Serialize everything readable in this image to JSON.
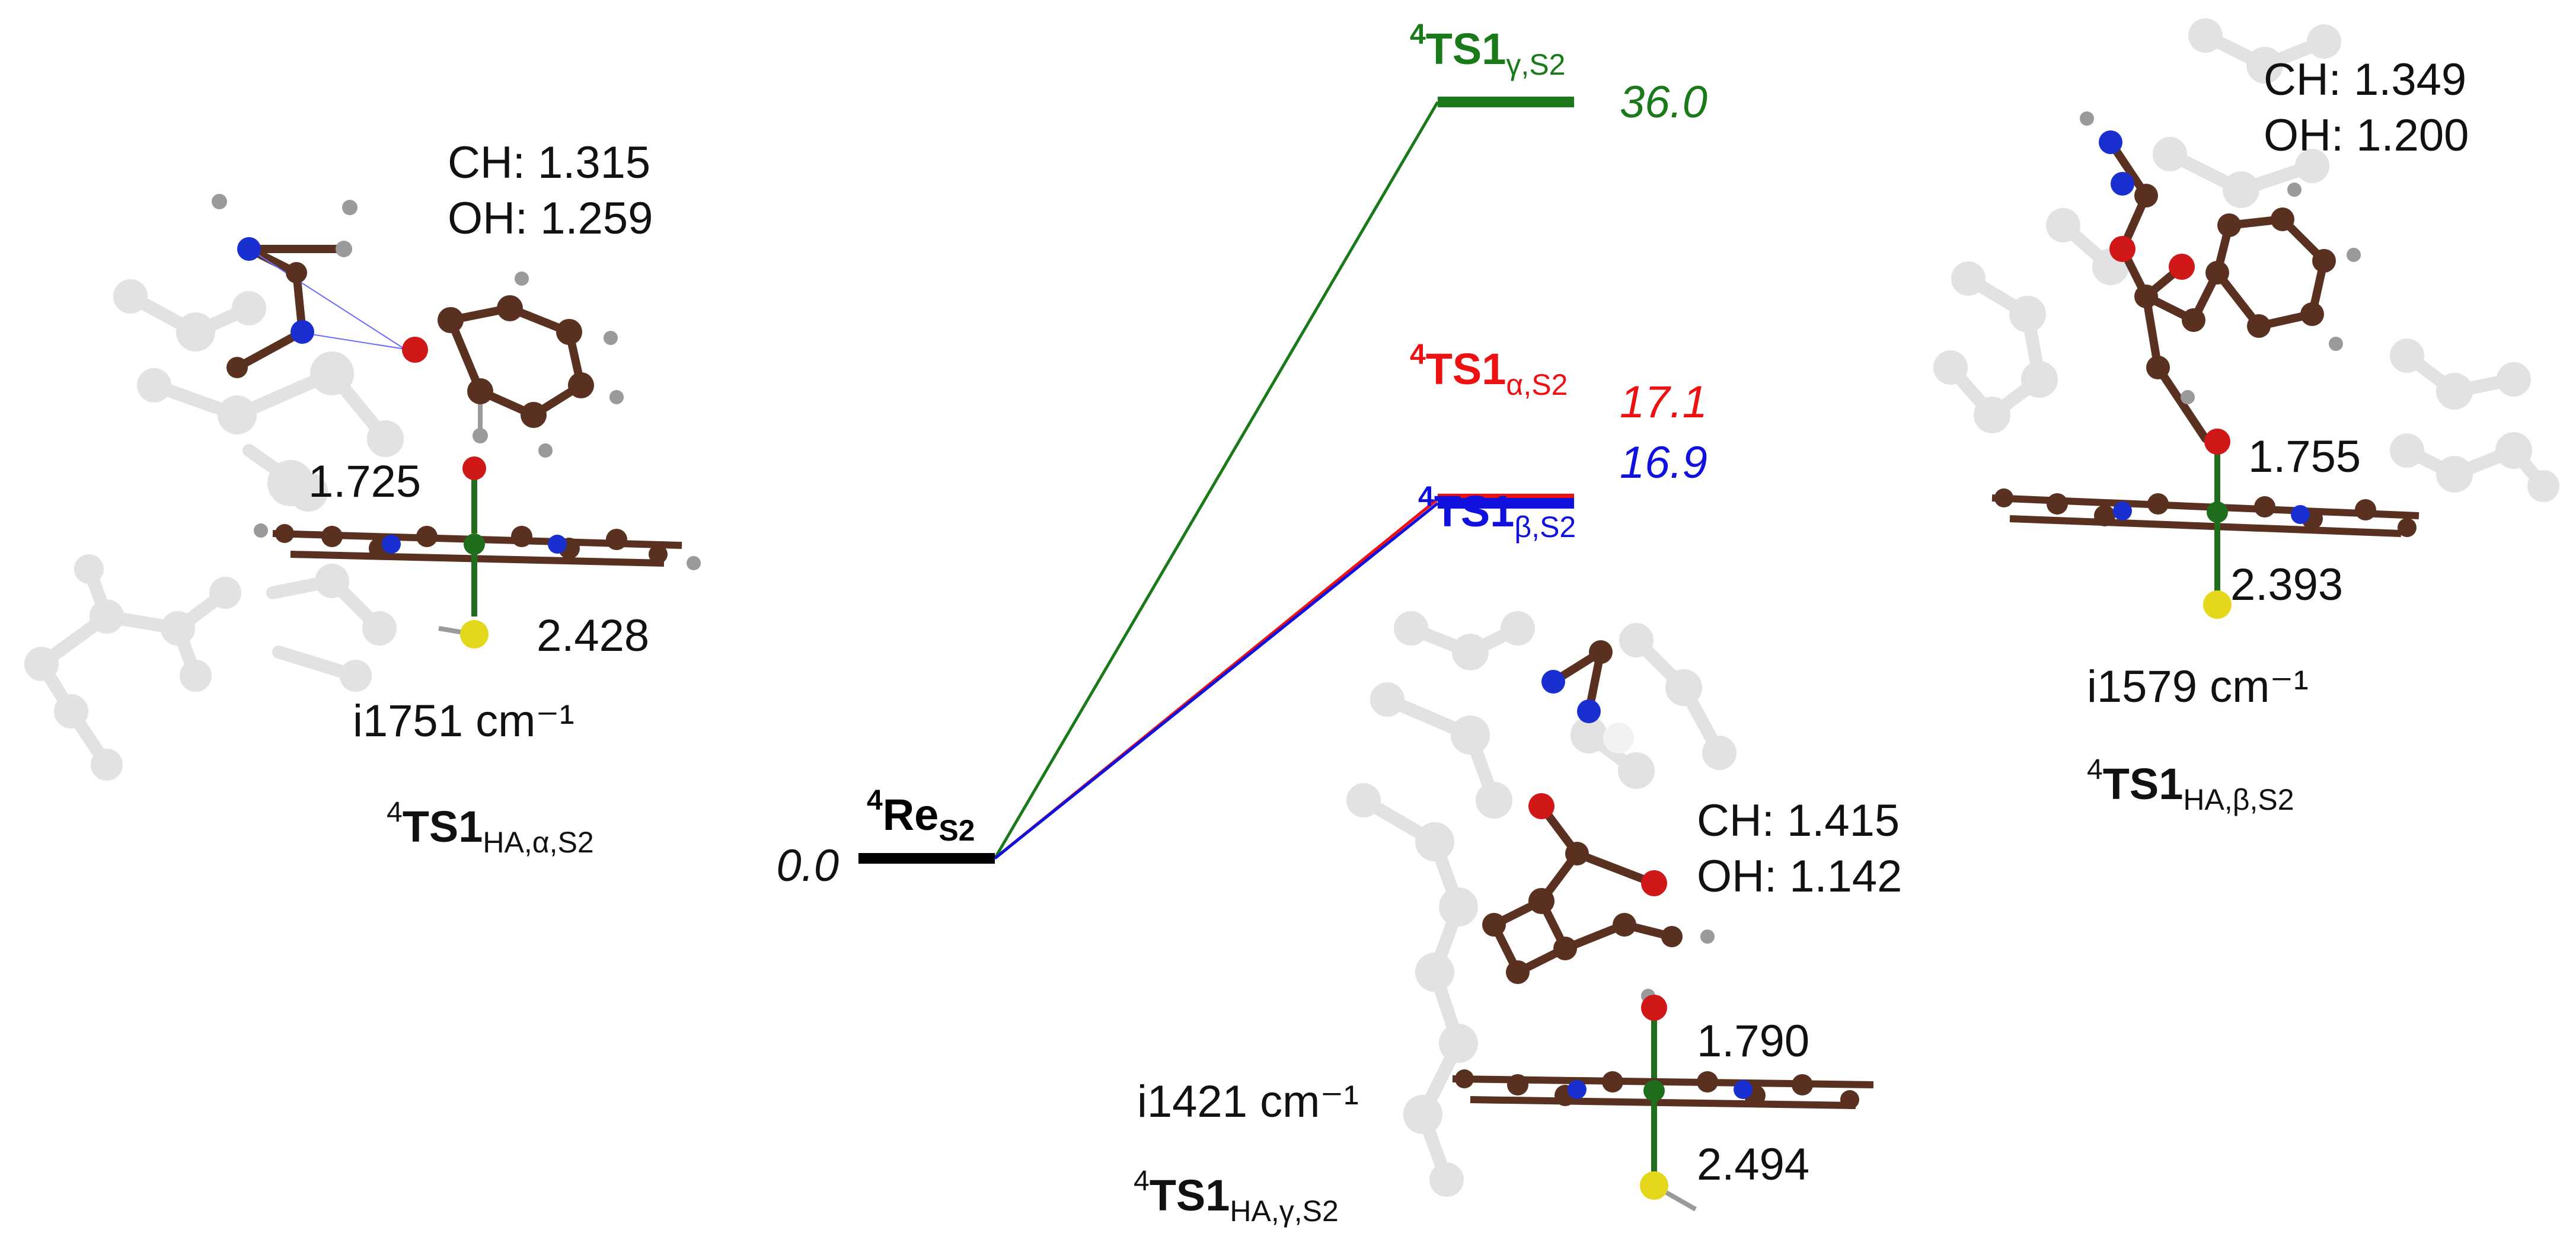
{
  "colors": {
    "reactant": "#000000",
    "gamma": "#1a7a1a",
    "alpha": "#ee1111",
    "beta": "#1111dd",
    "carbon": "#5a3020",
    "hydrogen": "#9a9a9a",
    "nitrogen": "#1a2fd0",
    "oxygen": "#d01818",
    "sulfur": "#e5d81c",
    "metal": "#1e6e1e",
    "faded": "#e2e2e2"
  },
  "chart_data": {
    "type": "energy-level-diagram",
    "units": "",
    "levels": [
      {
        "id": "reactant",
        "sup": "4",
        "main": "Re",
        "sub": "S2",
        "energy": 0.0,
        "energy_label": "0.0",
        "color_key": "reactant"
      },
      {
        "id": "ts_gamma",
        "sup": "4",
        "main": "TS1",
        "sub": "γ,S2",
        "energy": 36.0,
        "energy_label": "36.0",
        "color_key": "gamma"
      },
      {
        "id": "ts_alpha",
        "sup": "4",
        "main": "TS1",
        "sub": "α,S2",
        "energy": 17.1,
        "energy_label": "17.1",
        "color_key": "alpha"
      },
      {
        "id": "ts_beta",
        "sup": "4",
        "main": "TS1",
        "sub": "β,S2",
        "energy": 16.9,
        "energy_label": "16.9",
        "color_key": "beta"
      }
    ],
    "connections": [
      {
        "from": "reactant",
        "to": "ts_gamma"
      },
      {
        "from": "reactant",
        "to": "ts_alpha"
      },
      {
        "from": "reactant",
        "to": "ts_beta"
      }
    ]
  },
  "structures": {
    "alpha": {
      "ch": "CH: 1.315",
      "oh": "OH: 1.259",
      "fe_o": "1.725",
      "fe_s": "2.428",
      "freq": "i1751 cm⁻¹",
      "name": {
        "sup": "4",
        "main": "TS1",
        "sub": "HA,α,S2"
      }
    },
    "gamma": {
      "ch": "CH: 1.415",
      "oh": "OH: 1.142",
      "fe_o": "1.790",
      "fe_s": "2.494",
      "freq": "i1421 cm⁻¹",
      "name": {
        "sup": "4",
        "main": "TS1",
        "sub": "HA,γ,S2"
      }
    },
    "beta": {
      "ch": "CH: 1.349",
      "oh": "OH: 1.200",
      "fe_o": "1.755",
      "fe_s": "2.393",
      "freq": "i1579 cm⁻¹",
      "name": {
        "sup": "4",
        "main": "TS1",
        "sub": "HA,β,S2"
      }
    }
  }
}
